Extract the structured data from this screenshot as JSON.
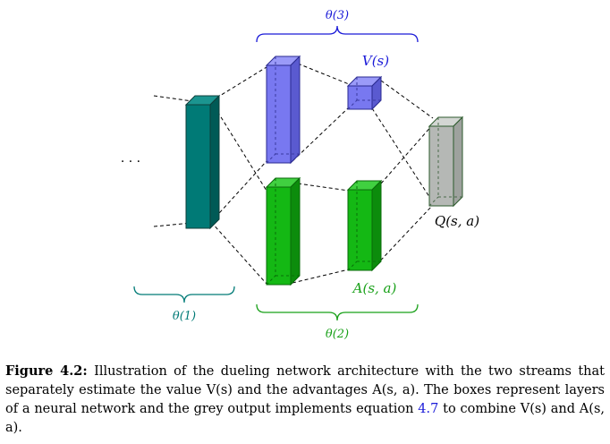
{
  "colors": {
    "teal": "#007a76",
    "blue": "#7878f0",
    "green": "#14b814",
    "grey": "#b5b8b5",
    "ref_link": "#1a1ad8"
  },
  "labels": {
    "dots": "· · ·",
    "theta1": "θ(1)",
    "theta2": "θ(2)",
    "theta3": "θ(3)",
    "value": "V(s)",
    "advantage": "A(s, a)",
    "q": "Q(s, a)"
  },
  "caption": {
    "figure_label": "Figure 4.2:",
    "text_before_ref": " Illustration of the dueling network architecture with the two streams that separately estimate the value V(s) and the advantages A(s, a). The boxes represent layers of a neural network and the grey output implements equation ",
    "ref": "4.7",
    "text_after_ref": " to combine V(s) and A(s, a)."
  }
}
